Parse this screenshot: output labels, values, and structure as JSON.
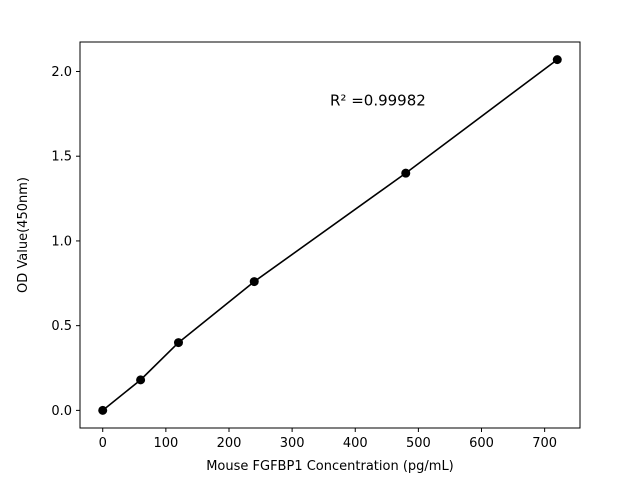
{
  "chart_data": {
    "type": "scatter",
    "series_name": "standard-curve",
    "x": [
      0,
      60,
      120,
      240,
      480,
      720
    ],
    "y": [
      0.0,
      0.18,
      0.4,
      0.76,
      1.4,
      2.07
    ],
    "title": "",
    "xlabel": "Mouse FGFBP1 Concentration (pg/mL)",
    "ylabel": "OD Value(450nm)",
    "annotation": "R² =0.99982",
    "annotation_xy": [
      360,
      1.8
    ],
    "xticks": [
      0,
      100,
      200,
      300,
      400,
      500,
      600,
      700
    ],
    "xtick_labels": [
      "0",
      "100",
      "200",
      "300",
      "400",
      "500",
      "600",
      "700"
    ],
    "ytick_values": [
      0.0,
      0.5,
      1.0,
      1.5,
      2.0
    ],
    "ytick_labels": [
      "0.0",
      "0.5",
      "1.0",
      "1.5",
      "2.0"
    ],
    "xlim": [
      -36,
      756
    ],
    "ylim": [
      -0.104,
      2.174
    ],
    "line": true,
    "grid": false,
    "legend": null,
    "marker_color": "#000000",
    "line_color": "#000000",
    "axis_color": "#000000",
    "background_color": "#ffffff"
  }
}
